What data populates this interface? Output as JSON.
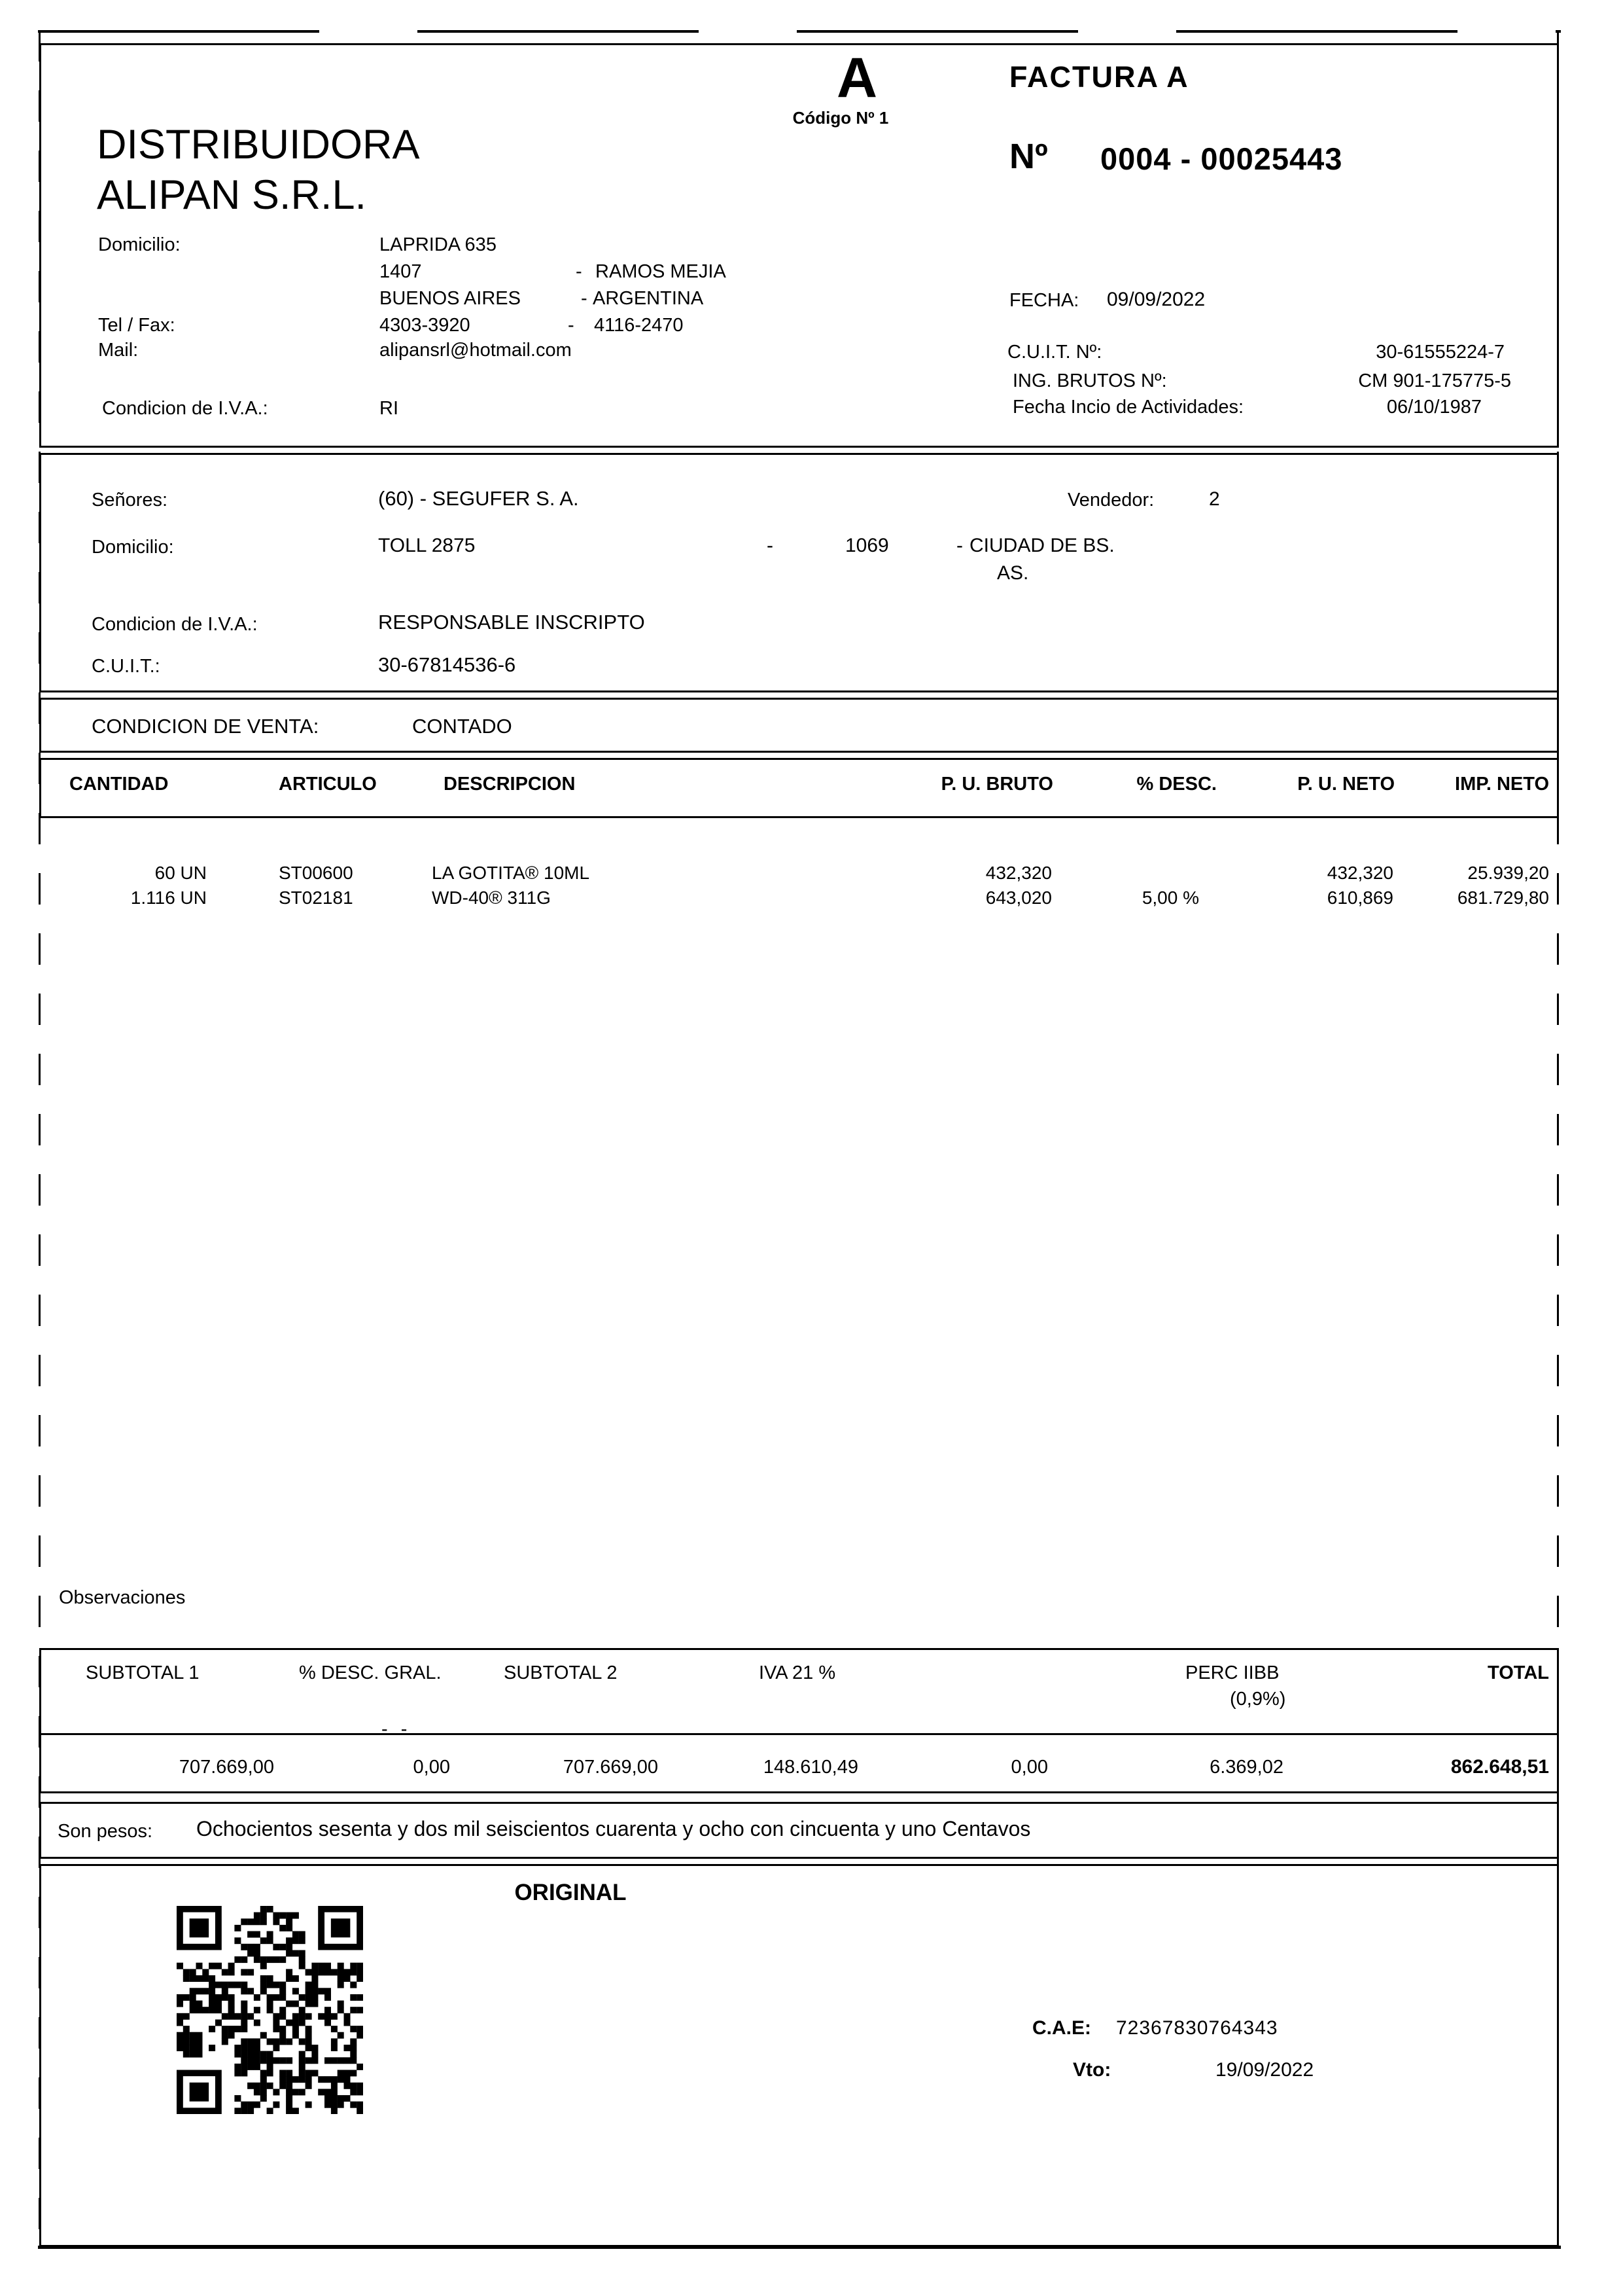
{
  "header": {
    "letter": "A",
    "code_label": "Código Nº 1",
    "doc_type": "FACTURA A",
    "number_label": "Nº",
    "number_value": "0004 - 00025443",
    "company_name_line1": "DISTRIBUIDORA",
    "company_name_line2": "ALIPAN S.R.L.",
    "domicilio_label": "Domicilio:",
    "address_street": "LAPRIDA 635",
    "address_zip": "1407",
    "address_city": "RAMOS MEJIA",
    "address_state": "BUENOS AIRES",
    "address_country": "ARGENTINA",
    "telfax_label": "Tel / Fax:",
    "tel": "4303-3920",
    "fax": "4116-2470",
    "mail_label": "Mail:",
    "mail": "alipansrl@hotmail.com",
    "iva_label": "Condicion de I.V.A.:",
    "iva_value": "RI",
    "fecha_label": "FECHA:",
    "fecha_value": "09/09/2022",
    "cuit_label": "C.U.I.T. Nº:",
    "cuit_value": "30-61555224-7",
    "iibb_label": "ING. BRUTOS Nº:",
    "iibb_value": "CM 901-175775-5",
    "inicio_label": "Fecha Incio de Actividades:",
    "inicio_value": "06/10/1987"
  },
  "customer": {
    "senores_label": "Señores:",
    "senores_value": "(60) - SEGUFER S. A.",
    "vendedor_label": "Vendedor:",
    "vendedor_value": "2",
    "domicilio_label": "Domicilio:",
    "street": "TOLL 2875",
    "zip": "1069",
    "city_line1": "CIUDAD DE BS.",
    "city_line2": "AS.",
    "iva_label": "Condicion de I.V.A.:",
    "iva_value": "RESPONSABLE INSCRIPTO",
    "cuit_label": "C.U.I.T.:",
    "cuit_value": "30-67814536-6"
  },
  "sale": {
    "label": "CONDICION DE VENTA:",
    "value": "CONTADO"
  },
  "items": {
    "headers": [
      "CANTIDAD",
      "ARTICULO",
      "DESCRIPCION",
      "P. U. BRUTO",
      "% DESC.",
      "P. U. NETO",
      "IMP. NETO"
    ],
    "rows": [
      {
        "cantidad": "60 UN",
        "articulo": "ST00600",
        "descripcion": "LA GOTITA® 10ML",
        "pu_bruto": "432,320",
        "desc": "",
        "pu_neto": "432,320",
        "imp_neto": "25.939,20"
      },
      {
        "cantidad": "1.116 UN",
        "articulo": "ST02181",
        "descripcion": "WD-40® 311G",
        "pu_bruto": "643,020",
        "desc": "5,00 %",
        "pu_neto": "610,869",
        "imp_neto": "681.729,80"
      }
    ]
  },
  "observaciones_label": "Observaciones",
  "totals": {
    "headers": [
      "SUBTOTAL 1",
      "% DESC. GRAL.",
      "SUBTOTAL 2",
      "IVA 21 %",
      "PERC IIBB",
      "TOTAL"
    ],
    "perc_iibb_rate": "(0,9%)",
    "dash_note": "- -",
    "values": [
      "707.669,00",
      "0,00",
      "707.669,00",
      "148.610,49",
      "0,00",
      "6.369,02",
      "862.648,51"
    ]
  },
  "amount_words": {
    "label": "Son pesos:",
    "value": "Ochocientos sesenta y dos mil seiscientos cuarenta y ocho con cincuenta y uno Centavos"
  },
  "footer": {
    "copy_label": "ORIGINAL",
    "cae_label": "C.A.E:",
    "cae_value": "72367830764343",
    "vto_label": "Vto:",
    "vto_value": "19/09/2022"
  },
  "separators": {
    "dash": "-"
  },
  "colors": {
    "ink": "#000000",
    "paper": "#ffffff"
  }
}
